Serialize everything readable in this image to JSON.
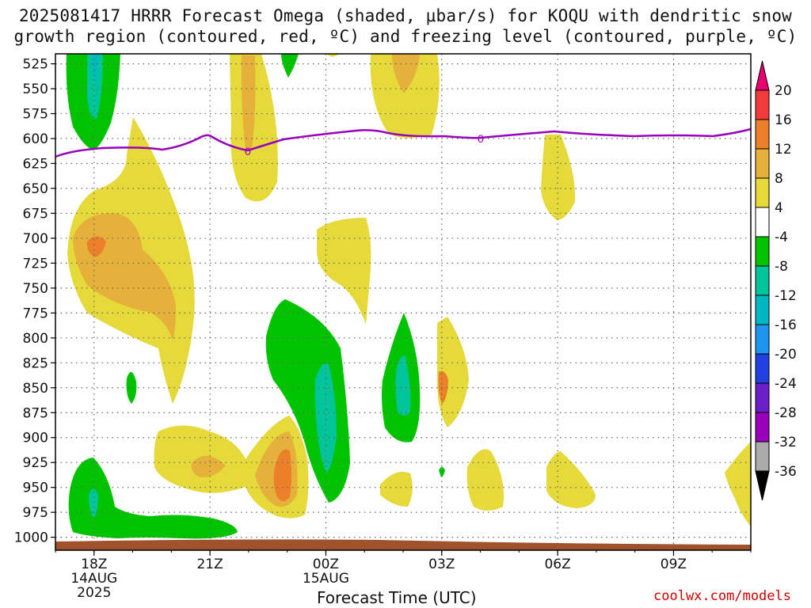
{
  "header": {
    "title_line1": "2025081417 HRRR Forecast Omega (shaded, μbar/s) for KOQU with dendritic snow",
    "title_line2": "growth region (contoured, red, ºC) and freezing level (contoured, purple, ºC)"
  },
  "footer": {
    "xlabel": "Forecast Time (UTC)",
    "credit": "coolwx.com/models"
  },
  "chart_data": {
    "type": "heatmap",
    "title": "2025081417 HRRR Forecast Omega (shaded, μbar/s) for KOQU with dendritic snow growth region (contoured, red, ºC) and freezing level (contoured, purple, ºC)",
    "xlabel": "Forecast Time (UTC)",
    "ylabel": "",
    "x_ticks": [
      {
        "label": "18Z",
        "sub": [
          "14AUG",
          "2025"
        ]
      },
      {
        "label": "21Z",
        "sub": []
      },
      {
        "label": "00Z",
        "sub": [
          "15AUG"
        ]
      },
      {
        "label": "03Z",
        "sub": []
      },
      {
        "label": "06Z",
        "sub": []
      },
      {
        "label": "09Z",
        "sub": []
      }
    ],
    "x_range_hours": [
      "2025-08-14 17Z",
      "2025-08-15 11Z"
    ],
    "y_ticks": [
      525,
      550,
      575,
      600,
      625,
      650,
      675,
      700,
      725,
      750,
      775,
      800,
      825,
      850,
      875,
      900,
      925,
      950,
      975,
      1000
    ],
    "y_range_hPa": [
      515,
      1013
    ],
    "grid": true,
    "colorbar": {
      "labels": [
        "20",
        "16",
        "12",
        "8",
        "4",
        "-4",
        "-8",
        "-12",
        "-16",
        "-20",
        "-24",
        "-28",
        "-32",
        "-36"
      ],
      "colors": [
        "#e8006f",
        "#f23c3c",
        "#ec7f2a",
        "#e6b13a",
        "#e6d93a",
        "#ffffff",
        "#00c300",
        "#00c59a",
        "#00b8c2",
        "#1e96f0",
        "#2040e0",
        "#6a1fc8",
        "#9900bb",
        "#aaaaaa",
        "#000000"
      ]
    },
    "freezing_level": {
      "value_label": "0",
      "color": "#9900bb"
    },
    "terrain_color": "#a0522d"
  }
}
